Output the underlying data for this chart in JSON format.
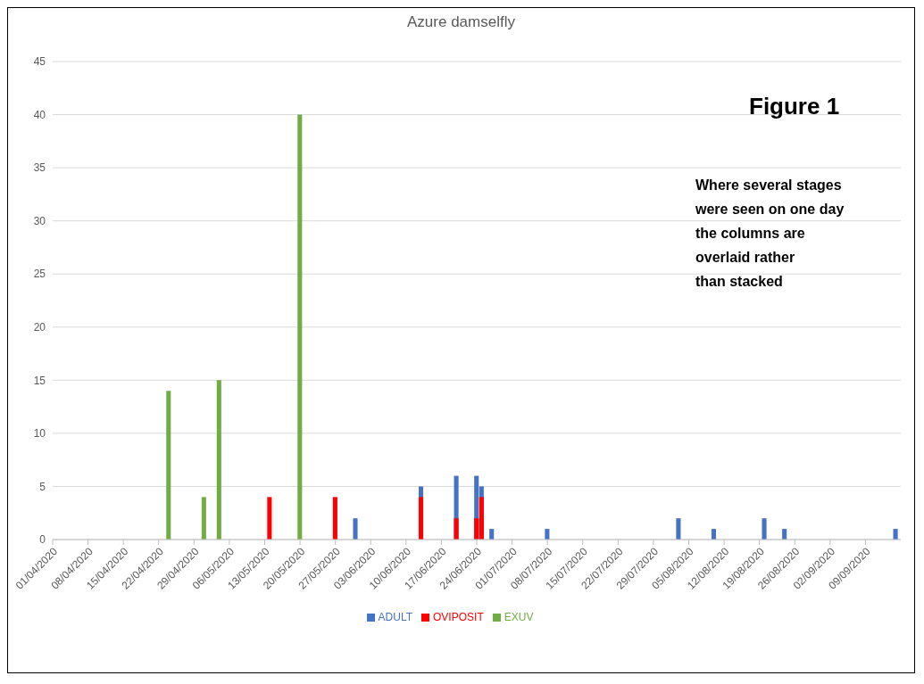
{
  "chart_data": {
    "type": "bar",
    "title": "Azure damselfly",
    "x": [
      "2020-04-24",
      "2020-05-01",
      "2020-05-04",
      "2020-05-14",
      "2020-05-20",
      "2020-05-27",
      "2020-05-31",
      "2020-06-13",
      "2020-06-20",
      "2020-06-24",
      "2020-06-25",
      "2020-06-27",
      "2020-07-08",
      "2020-08-03",
      "2020-08-10",
      "2020-08-20",
      "2020-08-24",
      "2020-09-15"
    ],
    "series": [
      {
        "name": "ADULT",
        "color": "#4472c4",
        "values": [
          null,
          null,
          null,
          null,
          null,
          null,
          2,
          5,
          6,
          6,
          5,
          1,
          1,
          2,
          1,
          2,
          1,
          1
        ]
      },
      {
        "name": "OVIPOSIT",
        "color": "#ff0000",
        "values": [
          null,
          null,
          null,
          4,
          null,
          4,
          null,
          4,
          2,
          2,
          4,
          null,
          null,
          null,
          null,
          null,
          null,
          null
        ]
      },
      {
        "name": "EXUV",
        "color": "#70ad47",
        "values": [
          14,
          4,
          15,
          null,
          40,
          null,
          null,
          null,
          null,
          null,
          null,
          null,
          null,
          null,
          null,
          null,
          null,
          null
        ]
      }
    ],
    "xlim": [
      "2020-04-01",
      "2020-09-16"
    ],
    "xticks": [
      {
        "value": "2020-04-01",
        "label": "01/04/2020"
      },
      {
        "value": "2020-04-08",
        "label": "08/04/2020"
      },
      {
        "value": "2020-04-15",
        "label": "15/04/2020"
      },
      {
        "value": "2020-04-22",
        "label": "22/04/2020"
      },
      {
        "value": "2020-04-29",
        "label": "29/04/2020"
      },
      {
        "value": "2020-05-06",
        "label": "06/05/2020"
      },
      {
        "value": "2020-05-13",
        "label": "13/05/2020"
      },
      {
        "value": "2020-05-20",
        "label": "20/05/2020"
      },
      {
        "value": "2020-05-27",
        "label": "27/05/2020"
      },
      {
        "value": "2020-06-03",
        "label": "03/06/2020"
      },
      {
        "value": "2020-06-10",
        "label": "10/06/2020"
      },
      {
        "value": "2020-06-17",
        "label": "17/06/2020"
      },
      {
        "value": "2020-06-24",
        "label": "24/06/2020"
      },
      {
        "value": "2020-07-01",
        "label": "01/07/2020"
      },
      {
        "value": "2020-07-08",
        "label": "08/07/2020"
      },
      {
        "value": "2020-07-15",
        "label": "15/07/2020"
      },
      {
        "value": "2020-07-22",
        "label": "22/07/2020"
      },
      {
        "value": "2020-07-29",
        "label": "29/07/2020"
      },
      {
        "value": "2020-08-05",
        "label": "05/08/2020"
      },
      {
        "value": "2020-08-12",
        "label": "12/08/2020"
      },
      {
        "value": "2020-08-19",
        "label": "19/08/2020"
      },
      {
        "value": "2020-08-26",
        "label": "26/08/2020"
      },
      {
        "value": "2020-09-02",
        "label": "02/09/2020"
      },
      {
        "value": "2020-09-09",
        "label": "09/09/2020"
      }
    ],
    "ylim": [
      0,
      45
    ],
    "yticks": [
      0,
      5,
      10,
      15,
      20,
      25,
      30,
      35,
      40,
      45
    ],
    "grid": "y",
    "legend": "bottom",
    "annotations": [
      "Figure 1",
      "Where several stages\nwere seen on one day\nthe columns are\noverlaid rather\nthan stacked"
    ]
  }
}
